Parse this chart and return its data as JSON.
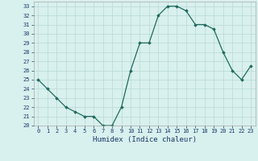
{
  "x": [
    0,
    1,
    2,
    3,
    4,
    5,
    6,
    7,
    8,
    9,
    10,
    11,
    12,
    13,
    14,
    15,
    16,
    17,
    18,
    19,
    20,
    21,
    22,
    23
  ],
  "y": [
    25.0,
    24.0,
    23.0,
    22.0,
    21.5,
    21.0,
    21.0,
    20.0,
    20.0,
    22.0,
    26.0,
    29.0,
    29.0,
    32.0,
    33.0,
    33.0,
    32.5,
    31.0,
    31.0,
    30.5,
    28.0,
    26.0,
    25.0,
    26.5
  ],
  "line_color": "#1f6b5e",
  "marker": "D",
  "marker_size": 1.8,
  "line_width": 0.9,
  "bg_color": "#d8f0ee",
  "grid_color": "#b8d8d4",
  "xlabel": "Humidex (Indice chaleur)",
  "xlim": [
    -0.5,
    23.5
  ],
  "ylim": [
    20,
    33.5
  ],
  "yticks": [
    20,
    21,
    22,
    23,
    24,
    25,
    26,
    27,
    28,
    29,
    30,
    31,
    32,
    33
  ],
  "xticks": [
    0,
    1,
    2,
    3,
    4,
    5,
    6,
    7,
    8,
    9,
    10,
    11,
    12,
    13,
    14,
    15,
    16,
    17,
    18,
    19,
    20,
    21,
    22,
    23
  ],
  "tick_fontsize": 5.0,
  "xlabel_fontsize": 6.5,
  "label_color": "#1a3a6a"
}
